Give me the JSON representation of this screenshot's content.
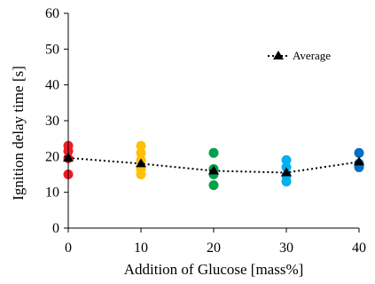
{
  "chart_data": {
    "type": "scatter",
    "title": "",
    "xlabel": "Addition of Glucose [mass%]",
    "ylabel": "Ignition delay time [s]",
    "xlim": [
      0,
      40
    ],
    "ylim": [
      0,
      60
    ],
    "xticks": [
      0,
      10,
      20,
      30,
      40
    ],
    "yticks": [
      0,
      10,
      20,
      30,
      40,
      50,
      60
    ],
    "grid": false,
    "legend_position": "top-right",
    "measurements": [
      {
        "x": 0,
        "color": "#ee1c25",
        "values": [
          15,
          19.5,
          21.5,
          23
        ]
      },
      {
        "x": 10,
        "color": "#ffc000",
        "values": [
          15,
          16.5,
          19,
          21,
          23
        ]
      },
      {
        "x": 20,
        "color": "#00a14b",
        "values": [
          12,
          15,
          16.5,
          21
        ]
      },
      {
        "x": 30,
        "color": "#00b0f0",
        "values": [
          13,
          14.5,
          17,
          19
        ]
      },
      {
        "x": 40,
        "color": "#0070c0",
        "values": [
          17,
          18,
          21
        ]
      }
    ],
    "series": [
      {
        "name": "Average",
        "style": "dotted-line-triangle",
        "color": "#000000",
        "x": [
          0,
          10,
          20,
          30,
          40
        ],
        "values": [
          19.6,
          18,
          16,
          15.5,
          18.5
        ]
      }
    ]
  }
}
